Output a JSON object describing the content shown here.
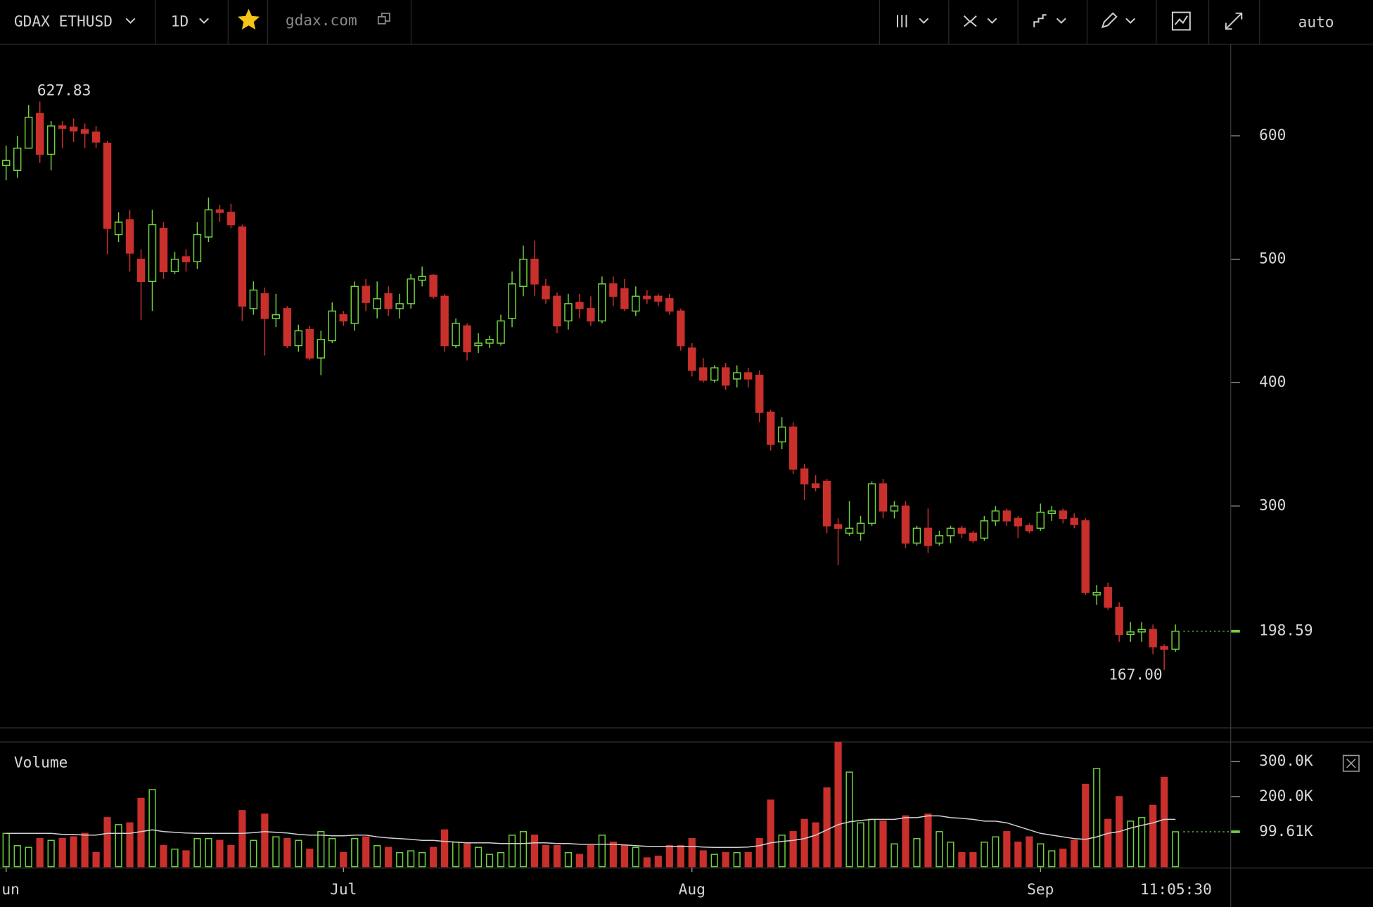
{
  "toolbar": {
    "symbol": "GDAX ETHUSD",
    "interval": "1D",
    "site": "gdax.com",
    "scale": "auto"
  },
  "clock": "11:05:30",
  "chart_data": {
    "type": "candlestick",
    "up_color": "#6fd13f",
    "down_color": "#c9302c",
    "xlim": [
      -0.545,
      108.8
    ],
    "xticks": [
      {
        "value": 0,
        "label": "Jun"
      },
      {
        "value": 30,
        "label": "Jul"
      },
      {
        "value": 61,
        "label": "Aug"
      },
      {
        "value": 92,
        "label": "Sep"
      }
    ],
    "ylim": [
      121.3,
      674.5
    ],
    "yticks": [
      300,
      400,
      500,
      600
    ],
    "low_label": "167.00",
    "open": [
      576,
      572,
      590,
      618,
      585,
      608,
      607,
      605,
      603,
      594,
      520,
      532,
      500,
      482,
      525,
      490,
      502,
      498,
      518,
      540,
      538,
      526,
      460,
      472,
      452,
      460,
      430,
      443,
      420,
      434,
      455,
      448,
      478,
      460,
      472,
      460,
      464,
      483,
      487,
      470,
      430,
      446,
      430,
      432,
      432,
      452,
      478,
      500,
      478,
      470,
      450,
      465,
      460,
      450,
      480,
      476,
      458,
      470,
      470,
      468,
      458,
      428,
      412,
      402,
      412,
      403,
      408,
      406,
      376,
      352,
      364,
      330,
      318,
      320,
      285,
      278,
      278,
      286,
      318,
      296,
      300,
      270,
      282,
      270,
      276,
      282,
      278,
      274,
      288,
      296,
      290,
      284,
      282,
      294,
      296,
      290,
      288,
      228,
      234,
      218,
      196,
      198,
      200,
      186,
      184
    ],
    "high": [
      592,
      600,
      625,
      627.83,
      612,
      612,
      614,
      610,
      608,
      596,
      538,
      540,
      508,
      540,
      530,
      506,
      508,
      530,
      550,
      544,
      545,
      528,
      482,
      477,
      472,
      462,
      447,
      446,
      442,
      465,
      458,
      482,
      484,
      482,
      478,
      472,
      488,
      494,
      488,
      472,
      452,
      448,
      440,
      438,
      455,
      490,
      511,
      515,
      484,
      473,
      472,
      472,
      470,
      486,
      486,
      484,
      478,
      475,
      472,
      472,
      460,
      432,
      420,
      414,
      416,
      414,
      412,
      410,
      378,
      372,
      368,
      334,
      325,
      322,
      290,
      304,
      292,
      320,
      322,
      304,
      304,
      284,
      298,
      280,
      284,
      284,
      280,
      292,
      300,
      298,
      292,
      286,
      302,
      300,
      298,
      294,
      290,
      236,
      238,
      222,
      206,
      206,
      204,
      188,
      204
    ],
    "low": [
      564,
      566,
      590,
      578,
      572,
      590,
      595,
      590,
      590,
      504,
      514,
      490,
      451,
      458,
      484,
      488,
      490,
      492,
      514,
      530,
      525,
      450,
      455,
      422,
      445,
      428,
      425,
      418,
      406,
      432,
      446,
      442,
      458,
      452,
      454,
      452,
      460,
      478,
      468,
      425,
      428,
      418,
      424,
      428,
      430,
      445,
      470,
      470,
      464,
      440,
      443,
      452,
      446,
      448,
      462,
      458,
      454,
      464,
      462,
      455,
      426,
      405,
      400,
      400,
      394,
      396,
      396,
      368,
      345,
      346,
      326,
      305,
      312,
      278,
      252,
      276,
      272,
      284,
      290,
      290,
      266,
      268,
      262,
      268,
      270,
      274,
      270,
      272,
      284,
      284,
      274,
      278,
      280,
      288,
      286,
      282,
      228,
      220,
      216,
      190,
      190,
      190,
      180,
      167,
      182
    ],
    "close": [
      580,
      590,
      615,
      585,
      608,
      606,
      604,
      602,
      595,
      525,
      530,
      505,
      482,
      528,
      490,
      500,
      498,
      520,
      540,
      538,
      528,
      462,
      475,
      452,
      455,
      430,
      442,
      420,
      435,
      458,
      450,
      478,
      465,
      468,
      460,
      464,
      484,
      486,
      470,
      430,
      448,
      425,
      432,
      435,
      450,
      480,
      500,
      480,
      468,
      446,
      464,
      460,
      450,
      480,
      470,
      460,
      470,
      468,
      466,
      458,
      430,
      410,
      402,
      412,
      398,
      408,
      403,
      376,
      350,
      364,
      330,
      318,
      315,
      284,
      282,
      282,
      286,
      318,
      296,
      300,
      270,
      282,
      268,
      276,
      282,
      278,
      272,
      288,
      296,
      288,
      284,
      280,
      295,
      296,
      290,
      285,
      230,
      230,
      218,
      196,
      198,
      200,
      186,
      184,
      198.59
    ],
    "volume": {
      "title": "Volume",
      "ylim": [
        0,
        355000
      ],
      "yticks": [
        {
          "value": 200000,
          "label": "200.0K"
        },
        {
          "value": 300000,
          "label": "300.0K"
        }
      ],
      "last_label": "99.61K",
      "ma_color": "#d0d0d0",
      "values": [
        95000,
        60000,
        55000,
        80000,
        75000,
        80000,
        85000,
        95000,
        40000,
        140000,
        120000,
        125000,
        195000,
        220000,
        60000,
        50000,
        45000,
        80000,
        80000,
        75000,
        60000,
        160000,
        75000,
        150000,
        85000,
        80000,
        75000,
        50000,
        100000,
        80000,
        40000,
        80000,
        85000,
        60000,
        55000,
        40000,
        45000,
        40000,
        55000,
        105000,
        70000,
        65000,
        55000,
        35000,
        40000,
        90000,
        100000,
        90000,
        60000,
        60000,
        40000,
        35000,
        60000,
        90000,
        70000,
        60000,
        55000,
        25000,
        30000,
        60000,
        60000,
        80000,
        45000,
        35000,
        40000,
        40000,
        40000,
        80000,
        190000,
        90000,
        100000,
        135000,
        125000,
        225000,
        355000,
        270000,
        125000,
        135000,
        130000,
        65000,
        145000,
        80000,
        150000,
        100000,
        70000,
        40000,
        40000,
        70000,
        85000,
        100000,
        70000,
        85000,
        65000,
        45000,
        50000,
        75000,
        235000,
        280000,
        135000,
        200000,
        130000,
        140000,
        175000,
        255000,
        99610
      ],
      "ma": [
        95000,
        95000,
        95000,
        95000,
        95000,
        92000,
        92000,
        90000,
        90000,
        95000,
        95000,
        95000,
        100000,
        105000,
        100000,
        98000,
        96000,
        95000,
        95000,
        95000,
        95000,
        95000,
        97000,
        100000,
        98000,
        96000,
        92000,
        90000,
        90000,
        88000,
        88000,
        90000,
        90000,
        85000,
        82000,
        80000,
        78000,
        75000,
        75000,
        72000,
        70000,
        68000,
        68000,
        68000,
        66000,
        66000,
        66000,
        68000,
        68000,
        66000,
        66000,
        64000,
        64000,
        64000,
        64000,
        62000,
        60000,
        58000,
        58000,
        58000,
        58000,
        58000,
        56000,
        55000,
        55000,
        55000,
        56000,
        60000,
        68000,
        72000,
        75000,
        80000,
        90000,
        105000,
        120000,
        128000,
        132000,
        135000,
        135000,
        135000,
        140000,
        140000,
        145000,
        145000,
        140000,
        138000,
        135000,
        130000,
        130000,
        125000,
        115000,
        105000,
        95000,
        90000,
        85000,
        80000,
        78000,
        85000,
        95000,
        100000,
        110000,
        118000,
        125000,
        135000,
        135000
      ]
    }
  }
}
